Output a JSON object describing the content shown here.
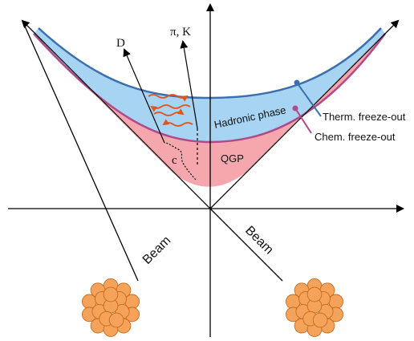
{
  "labels": {
    "d_meson": "D",
    "pi_k": "π, K",
    "charm": "c",
    "hadronic": "Hadronic phase",
    "qgp": "QGP",
    "therm": "Therm. freeze-out",
    "chem": "Chem. freeze-out",
    "beam_left": "Beam",
    "beam_right": "Beam"
  }
}
